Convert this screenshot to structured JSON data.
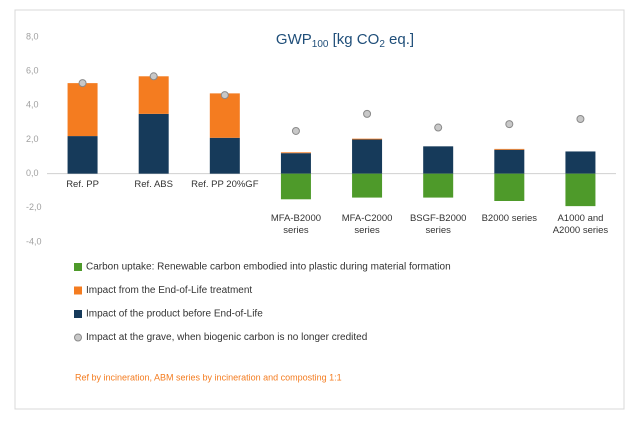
{
  "chart_data": {
    "type": "bar",
    "title": [
      "GWP",
      "100",
      " [kg CO",
      "2",
      " eq.]"
    ],
    "categories": [
      "Ref. PP",
      "Ref. ABS",
      "Ref. PP 20%GF",
      "MFA-B2000 series",
      "MFA-C2000 series",
      "BSGF-B2000 series",
      "B2000 series",
      "A1000 and A2000 series"
    ],
    "series": [
      {
        "name": "Carbon uptake: Renewable carbon embodied into plastic during material formation",
        "type": "bar",
        "color": "#4e9a2a",
        "values": [
          null,
          null,
          null,
          -1.5,
          -1.4,
          -1.4,
          -1.6,
          -1.9
        ]
      },
      {
        "name": "Impact from the End-of-Life treatment",
        "type": "bar",
        "color": "#f47c20",
        "values": [
          3.1,
          2.2,
          2.6,
          0.05,
          0.05,
          null,
          0.05,
          null
        ]
      },
      {
        "name": "Impact of the product before End-of-Life",
        "type": "bar",
        "color": "#163a5a",
        "values": [
          2.2,
          3.5,
          2.1,
          1.2,
          2.0,
          1.6,
          1.4,
          1.3
        ]
      },
      {
        "name": "Impact at the grave, when biogenic carbon is no longer credited",
        "type": "scatter",
        "color": "#c8c8c8",
        "values": [
          5.3,
          5.7,
          4.6,
          2.5,
          3.5,
          2.7,
          2.9,
          3.2
        ]
      }
    ],
    "ylim": [
      -4,
      8
    ],
    "yticks": [
      {
        "value": 8,
        "label": "8,0"
      },
      {
        "value": 6,
        "label": "6,0"
      },
      {
        "value": 4,
        "label": "4,0"
      },
      {
        "value": 2,
        "label": "2,0"
      },
      {
        "value": 0,
        "label": "0,0"
      },
      {
        "value": -2,
        "label": "-2,0"
      },
      {
        "value": -4,
        "label": "-4,0"
      }
    ],
    "note": "Ref by incineration, ABM series by incineration and composting 1:1",
    "note_color": "#f47c20"
  }
}
